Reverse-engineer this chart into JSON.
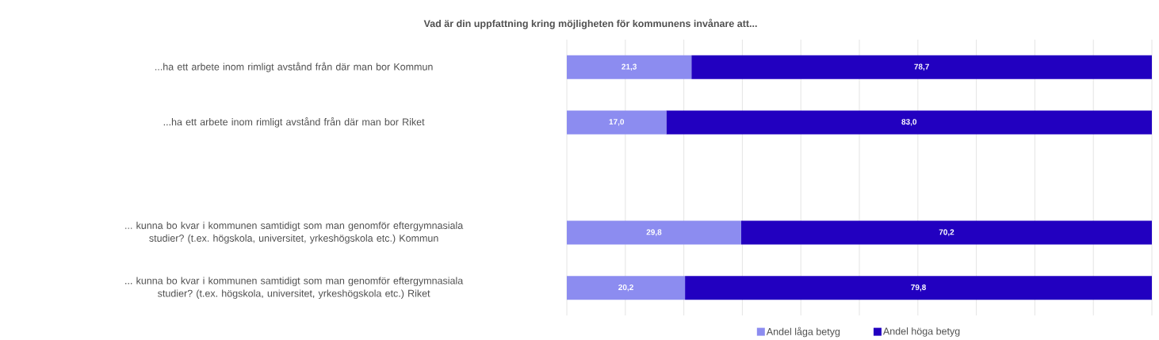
{
  "chart_data": {
    "type": "bar",
    "orientation": "horizontal",
    "stacked": true,
    "title": "Vad är din uppfattning kring möjligheten för kommunens invånare att...",
    "categories": [
      "...ha ett arbete inom rimligt avstånd från där man bor Kommun",
      "...ha ett arbete inom rimligt avstånd från där man bor Riket",
      null,
      "... kunna bo kvar i kommunen samtidigt som man genomför eftergymnasiala studier? (t.ex. högskola, universitet, yrkeshögskola etc.) Kommun",
      "... kunna bo kvar i kommunen samtidigt som man genomför eftergymnasiala studier? (t.ex. högskola, universitet, yrkeshögskola etc.) Riket"
    ],
    "series": [
      {
        "name": "Andel låga betyg",
        "color": "#8c8cf0",
        "values": [
          21.3,
          17.0,
          null,
          29.8,
          20.2
        ],
        "value_labels": [
          "21,3",
          "17,0",
          null,
          "29,8",
          "20,2"
        ]
      },
      {
        "name": "Andel höga betyg",
        "color": "#2200c0",
        "values": [
          78.7,
          83.0,
          null,
          70.2,
          79.8
        ],
        "value_labels": [
          "78,7",
          "83,0",
          null,
          "70,2",
          "79,8"
        ]
      }
    ],
    "tick_labels": "y",
    "grid": "x",
    "legend": "bottom"
  }
}
